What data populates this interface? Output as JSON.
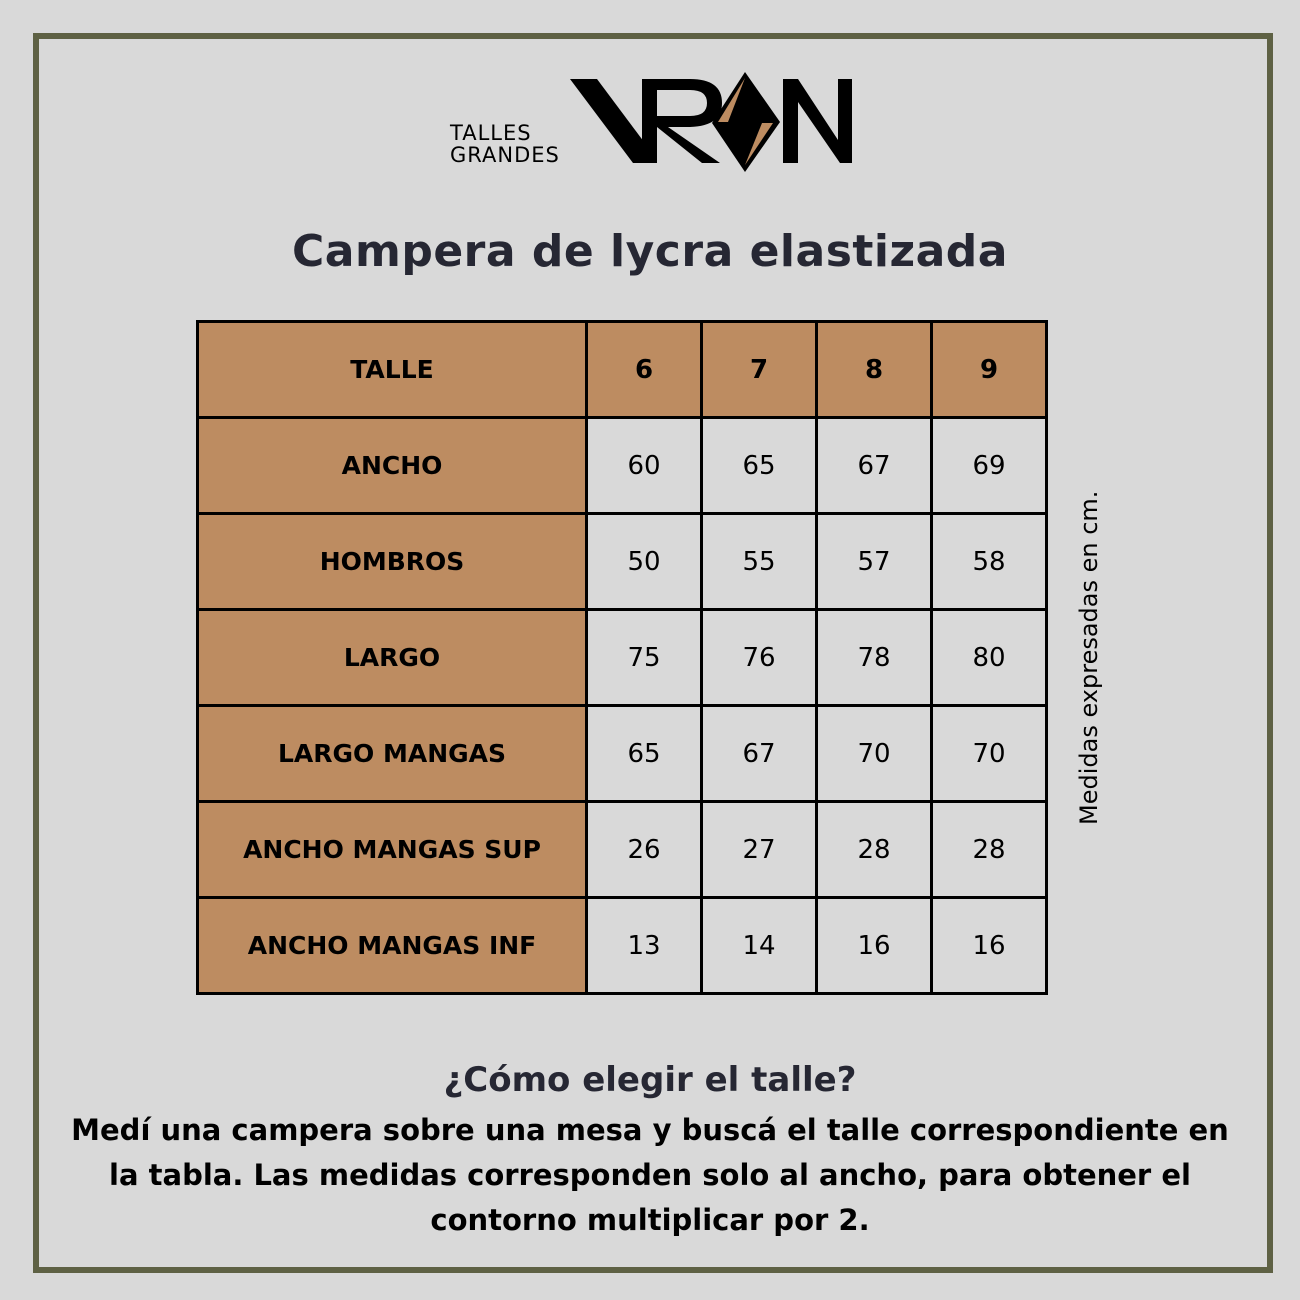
{
  "logo": {
    "tagline_1": "TALLES",
    "tagline_2": "GRANDES",
    "brand": "VRON",
    "accent": "#bd8c61"
  },
  "title": "Campera de lycra elastizada",
  "table": {
    "header": [
      "TALLE",
      "6",
      "7",
      "8",
      "9"
    ],
    "rows": [
      {
        "label": "ANCHO",
        "values": [
          "60",
          "65",
          "67",
          "69"
        ]
      },
      {
        "label": "HOMBROS",
        "values": [
          "50",
          "55",
          "57",
          "58"
        ]
      },
      {
        "label": "LARGO",
        "values": [
          "75",
          "76",
          "78",
          "80"
        ]
      },
      {
        "label": "LARGO MANGAS",
        "values": [
          "65",
          "67",
          "70",
          "70"
        ]
      },
      {
        "label": "ANCHO MANGAS SUP",
        "values": [
          "26",
          "27",
          "28",
          "28"
        ]
      },
      {
        "label": "ANCHO MANGAS INF",
        "values": [
          "13",
          "14",
          "16",
          "16"
        ]
      }
    ]
  },
  "side_note": "Medidas expresadas en cm.",
  "question": "¿Cómo elegir el talle?",
  "description": "Medí una campera sobre una mesa y buscá el talle correspondiente en la tabla. Las medidas corresponden solo al ancho, para obtener el contorno multiplicar por 2.",
  "colors": {
    "frame": "#5e6144",
    "background": "#d9d9d9",
    "header_fill": "#bd8c61"
  }
}
